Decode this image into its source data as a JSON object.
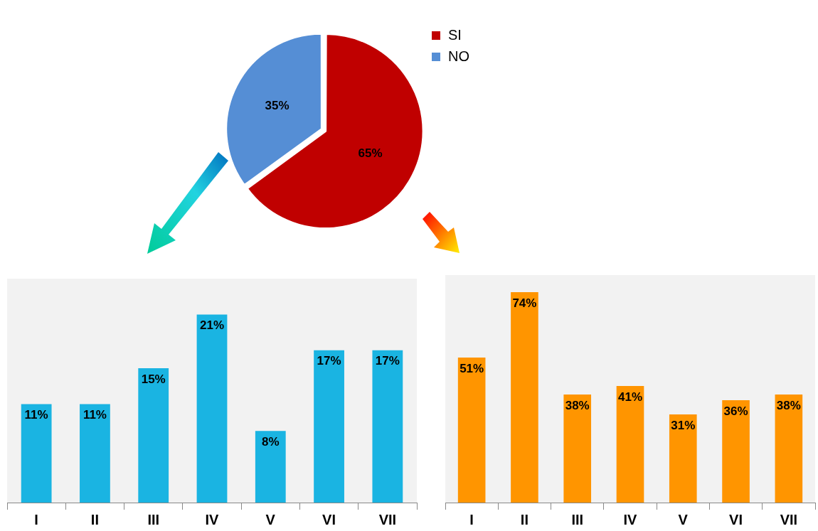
{
  "chart_data": [
    {
      "type": "pie",
      "categories": [
        "SI",
        "NO"
      ],
      "values": [
        65,
        35
      ],
      "colors": [
        "#c00000",
        "#558ed5"
      ],
      "value_labels": [
        "65%",
        "35%"
      ],
      "legend": "top right"
    },
    {
      "type": "bar",
      "categories": [
        "I",
        "II",
        "III",
        "IV",
        "V",
        "VI",
        "VII"
      ],
      "values": [
        11,
        11,
        15,
        21,
        8,
        17,
        17
      ],
      "value_labels": [
        "11%",
        "11%",
        "15%",
        "21%",
        "8%",
        "17%",
        "17%"
      ],
      "color": "#1ab4e2",
      "grid": false,
      "tick_labels": "x"
    },
    {
      "type": "bar",
      "categories": [
        "I",
        "II",
        "III",
        "IV",
        "V",
        "VI",
        "VII"
      ],
      "values": [
        51,
        74,
        38,
        41,
        31,
        36,
        38
      ],
      "value_labels": [
        "51%",
        "74%",
        "38%",
        "41%",
        "31%",
        "36%",
        "38%"
      ],
      "color": "#ff9500",
      "grid": false,
      "tick_labels": "x"
    }
  ]
}
